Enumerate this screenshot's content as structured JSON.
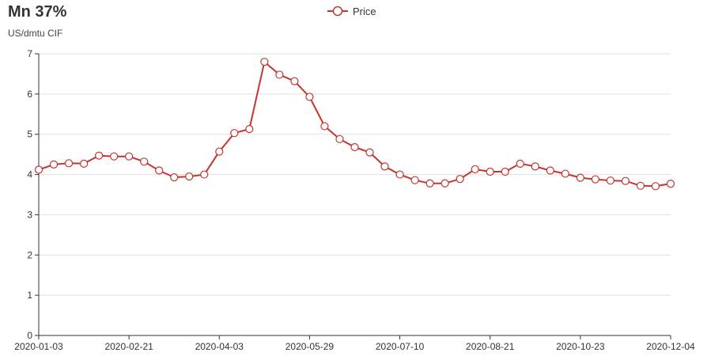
{
  "chart_data": {
    "type": "line",
    "title": "Mn 37%",
    "ylabel": "US/dmtu CIF",
    "ylim": [
      0,
      7
    ],
    "yticks": [
      0,
      1,
      2,
      3,
      4,
      5,
      6,
      7
    ],
    "xtick_labels": [
      "2020-01-03",
      "2020-02-21",
      "2020-04-03",
      "2020-05-29",
      "2020-07-10",
      "2020-08-21",
      "2020-10-23",
      "2020-12-04"
    ],
    "legend_position": "top-center",
    "grid": true,
    "series": [
      {
        "name": "Price",
        "color": "#c23531",
        "values": [
          4.12,
          4.25,
          4.28,
          4.27,
          4.47,
          4.45,
          4.45,
          4.32,
          4.1,
          3.93,
          3.95,
          4.0,
          4.57,
          5.03,
          5.13,
          6.8,
          6.48,
          6.32,
          5.93,
          5.2,
          4.88,
          4.68,
          4.55,
          4.2,
          4.0,
          3.86,
          3.78,
          3.78,
          3.89,
          4.13,
          4.07,
          4.07,
          4.27,
          4.2,
          4.1,
          4.02,
          3.92,
          3.88,
          3.85,
          3.84,
          3.72,
          3.71,
          3.77
        ]
      }
    ]
  }
}
